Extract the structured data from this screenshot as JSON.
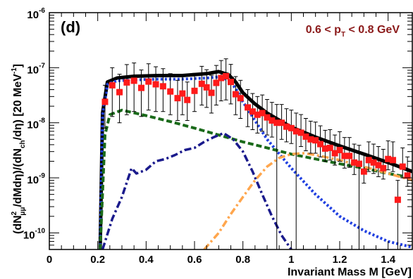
{
  "chart_data": {
    "type": "line",
    "panel_label": "(d)",
    "pt_range_label": {
      "prefix": "0.6 <  p",
      "sub": "T",
      "suffix": " < 0.8 GeV"
    },
    "xlabel": "Invariant Mass M [GeV]",
    "ylabel": {
      "p1": "(dN",
      "p1_sup": "2",
      "p1_sub": "μμ",
      "p2": "/dMdη)/(dN",
      "p2_sub": "ch",
      "p3": "/dη) [20 MeV",
      "p3_sup": "-1",
      "p4": "]"
    },
    "xlim": [
      0,
      1.5
    ],
    "ylim": [
      5e-11,
      1e-06
    ],
    "yscale": "log",
    "x_ticks": [
      "0",
      "0.2",
      "0.4",
      "0.6",
      "0.8",
      "1",
      "1.2",
      "1.4"
    ],
    "y_ticks": [
      {
        "base": "10",
        "exp": "-10",
        "value": 1e-10
      },
      {
        "base": "10",
        "exp": "-9",
        "value": 1e-09
      },
      {
        "base": "10",
        "exp": "-8",
        "value": 1e-08
      },
      {
        "base": "10",
        "exp": "-7",
        "value": 1e-07
      },
      {
        "base": "10",
        "exp": "-6",
        "value": 1e-06
      }
    ],
    "colors": {
      "total": "#000000",
      "blue_dotted": "#1f3fe0",
      "green_dashed": "#1a6a1a",
      "navy_dashdot": "#1a1a8c",
      "orange_dashdot": "#ffa64d",
      "data_points": "#ff1a1a"
    },
    "series": [
      {
        "style": "solid",
        "color_key": "total",
        "x": [
          0.21,
          0.22,
          0.24,
          0.28,
          0.35,
          0.45,
          0.55,
          0.65,
          0.7,
          0.74,
          0.77,
          0.8,
          0.85,
          0.9,
          1.0,
          1.1,
          1.2,
          1.3,
          1.4,
          1.5
        ],
        "y": [
          5e-11,
          1.5e-08,
          5.5e-08,
          6.5e-08,
          7e-08,
          7.2e-08,
          7.2e-08,
          7.8e-08,
          8.5e-08,
          7.5e-08,
          5.5e-08,
          3.5e-08,
          2.2e-08,
          1.5e-08,
          8.3e-09,
          5.5e-09,
          3.8e-09,
          2.7e-09,
          1.9e-09,
          1.3e-09
        ]
      },
      {
        "style": "dotted",
        "color_key": "blue_dotted",
        "x": [
          0.21,
          0.22,
          0.24,
          0.28,
          0.35,
          0.45,
          0.55,
          0.65,
          0.7,
          0.74,
          0.77,
          0.8,
          0.85,
          0.9,
          1.0,
          1.1,
          1.2,
          1.3,
          1.4,
          1.5
        ],
        "y": [
          5e-11,
          1.4e-08,
          5e-08,
          5.8e-08,
          6e-08,
          6.2e-08,
          6.2e-08,
          6.5e-08,
          6.8e-08,
          6e-08,
          4.2e-08,
          2.4e-08,
          1.1e-08,
          5e-09,
          1.5e-09,
          5e-10,
          2e-10,
          1.1e-10,
          7e-11,
          5.5e-11
        ]
      },
      {
        "style": "dashed",
        "color_key": "green_dashed",
        "x": [
          0.21,
          0.23,
          0.25,
          0.3,
          0.4,
          0.5,
          0.6,
          0.7,
          0.8,
          0.9,
          1.0,
          1.1,
          1.2,
          1.3,
          1.4,
          1.5
        ],
        "y": [
          5e-11,
          6e-09,
          1.4e-08,
          1.7e-08,
          1.35e-08,
          1.05e-08,
          8e-09,
          6e-09,
          4.5e-09,
          3.5e-09,
          2.7e-09,
          2.2e-09,
          1.8e-09,
          1.5e-09,
          1.2e-09,
          1e-09
        ]
      },
      {
        "style": "dashdot",
        "color_key": "navy_dashdot",
        "x": [
          0.22,
          0.26,
          0.3,
          0.34,
          0.36,
          0.4,
          0.44,
          0.48,
          0.52,
          0.56,
          0.6,
          0.64,
          0.68,
          0.72,
          0.76,
          0.8,
          0.84,
          0.88,
          0.92,
          0.96,
          1.0
        ],
        "y": [
          5e-11,
          1.8e-10,
          4.5e-10,
          1.5e-09,
          1.2e-09,
          1.4e-09,
          2e-09,
          2.2e-09,
          2.6e-09,
          3.2e-09,
          3.5e-09,
          4.5e-09,
          5.5e-09,
          6.5e-09,
          5e-09,
          3e-09,
          1.3e-09,
          5e-10,
          2e-10,
          9e-11,
          5e-11
        ]
      },
      {
        "style": "dashdot",
        "color_key": "orange_dashdot",
        "x": [
          0.64,
          0.7,
          0.75,
          0.8,
          0.85,
          0.9,
          0.95,
          1.0,
          1.05,
          1.1,
          1.2,
          1.3,
          1.4,
          1.5
        ],
        "y": [
          5e-11,
          1e-10,
          2.2e-10,
          4.5e-10,
          9e-10,
          1.6e-09,
          2.3e-09,
          2.7e-09,
          2.8e-09,
          2.6e-09,
          2.1e-09,
          1.6e-09,
          1.2e-09,
          9e-10
        ]
      }
    ],
    "data_points": {
      "x": [
        0.23,
        0.26,
        0.29,
        0.32,
        0.35,
        0.38,
        0.41,
        0.44,
        0.47,
        0.5,
        0.53,
        0.55,
        0.57,
        0.6,
        0.63,
        0.65,
        0.67,
        0.69,
        0.71,
        0.73,
        0.75,
        0.77,
        0.79,
        0.82,
        0.84,
        0.86,
        0.88,
        0.9,
        0.92,
        0.94,
        0.96,
        0.98,
        1.0,
        1.02,
        1.04,
        1.06,
        1.08,
        1.1,
        1.12,
        1.14,
        1.16,
        1.18,
        1.2,
        1.22,
        1.24,
        1.26,
        1.28,
        1.3,
        1.32,
        1.34,
        1.36,
        1.38,
        1.4,
        1.42,
        1.44,
        1.46,
        1.48
      ],
      "y": [
        2.4e-08,
        4.8e-08,
        3.6e-08,
        5.4e-08,
        5.8e-08,
        4.3e-08,
        5.6e-08,
        5e-08,
        4.6e-08,
        3.7e-08,
        2.8e-08,
        3.4e-08,
        2.6e-08,
        3.8e-08,
        5.1e-08,
        4.4e-08,
        3.5e-08,
        5.3e-08,
        6.5e-08,
        7e-08,
        5.5e-08,
        3.3e-08,
        2.8e-08,
        1.9e-08,
        1.6e-08,
        1.4e-08,
        1.5e-08,
        1.25e-08,
        1.1e-08,
        1e-08,
        1e-08,
        8.5e-09,
        8e-09,
        7e-09,
        6.6e-09,
        5.6e-09,
        5e-09,
        4.8e-09,
        4.1e-09,
        3.4e-09,
        3.5e-09,
        2.8e-09,
        3.2e-09,
        2.5e-09,
        2.5e-09,
        1.9e-09,
        1.8e-09,
        1.3e-09,
        2.1e-09,
        1.9e-09,
        1.7e-09,
        1.5e-09,
        2.2e-09,
        2.1e-09,
        4e-10,
        1.6e-09,
        1.1e-09
      ],
      "err_lo": [
        1.6e-08,
        3.5e-08,
        2.6e-08,
        4e-08,
        4.2e-08,
        3e-08,
        3.9e-08,
        3.4e-08,
        3e-08,
        2.3e-08,
        1.7e-08,
        2e-08,
        1.5e-08,
        2.2e-08,
        3e-08,
        2.5e-08,
        2e-08,
        3.2e-08,
        4e-08,
        4.4e-08,
        3.3e-08,
        1.9e-08,
        1.6e-08,
        1.05e-08,
        8.5e-09,
        7.5e-09,
        8e-09,
        6.5e-09,
        5.5e-09,
        5e-09,
        5e-09,
        4e-09,
        3.8e-09,
        3.2e-09,
        2.9e-09,
        2.5e-09,
        2.2e-09,
        2e-09,
        1.7e-09,
        1.4e-09,
        1.4e-09,
        1.1e-09,
        1.2e-09,
        1e-09,
        9.5e-10,
        7.5e-10,
        7e-10,
        5e-10,
        8e-10,
        7e-10,
        6.5e-10,
        5.5e-10,
        8e-10,
        8e-10,
        1.5e-10,
        6e-10,
        4e-10
      ],
      "err_hi": [
        2.4e-08,
        5.2e-08,
        4e-08,
        6e-08,
        6.4e-08,
        4.8e-08,
        6.2e-08,
        5.4e-08,
        5e-08,
        4.1e-08,
        3.1e-08,
        3.7e-08,
        2.9e-08,
        4.1e-08,
        5.5e-08,
        4.8e-08,
        3.8e-08,
        5.7e-08,
        7e-08,
        7.5e-08,
        6e-08,
        3.6e-08,
        3.1e-08,
        2.1e-08,
        1.8e-08,
        1.6e-08,
        1.7e-08,
        1.4e-08,
        1.25e-08,
        1.15e-08,
        1.15e-08,
        9.5e-09,
        9e-09,
        8e-09,
        7.5e-09,
        6.4e-09,
        5.7e-09,
        5.5e-09,
        4.7e-09,
        3.9e-09,
        4e-09,
        3.2e-09,
        3.7e-09,
        2.9e-09,
        2.9e-09,
        2.2e-09,
        2.1e-09,
        1.5e-09,
        2.4e-09,
        2.2e-09,
        2e-09,
        1.8e-09,
        2.5e-09,
        2.4e-09,
        5e-10,
        1.9e-09,
        1.3e-09
      ],
      "err_to_floor": [
        0.94,
        1.02,
        1.28,
        1.44
      ]
    }
  }
}
